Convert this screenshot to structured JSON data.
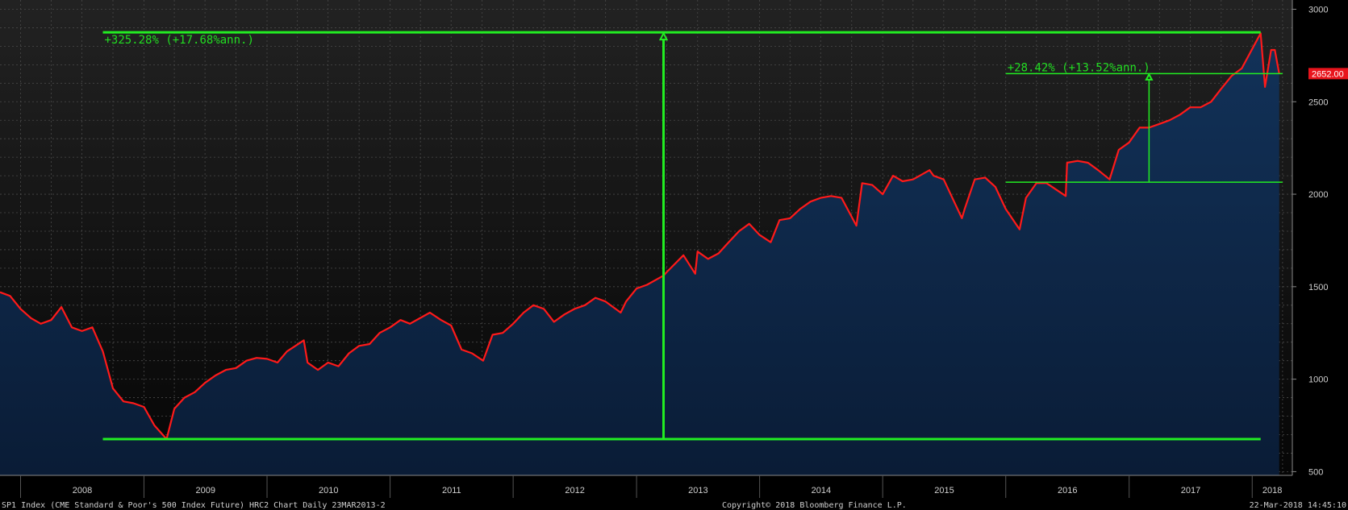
{
  "chart_data": {
    "type": "line",
    "title": "",
    "xlabel": "",
    "ylabel": "",
    "ylim": [
      480,
      3050
    ],
    "xlim": [
      "2007-11-01",
      "2018-04-30"
    ],
    "yticks": [
      500,
      1000,
      1500,
      2000,
      2500,
      3000
    ],
    "ytick_labels": [
      "500",
      "1000",
      "1500",
      "2000",
      "2500",
      "3000"
    ],
    "xticks": [
      2008,
      2009,
      2010,
      2011,
      2012,
      2013,
      2014,
      2015,
      2016,
      2017,
      2018
    ],
    "xtick_labels": [
      "2008",
      "2009",
      "2010",
      "2011",
      "2012",
      "2013",
      "2014",
      "2015",
      "2016",
      "2017",
      "2018"
    ],
    "grid": true,
    "colors": {
      "line": "#ff1a1a",
      "fill_top": "#0e2b4d",
      "fill_bottom": "#0a1a32",
      "annotation": "#22ee22",
      "bg_top": "#222222",
      "bg_bottom": "#050505"
    },
    "series": [
      {
        "x": [
          "2007-11-01",
          "2007-12-01",
          "2008-01-01",
          "2008-02-01",
          "2008-03-01",
          "2008-04-01",
          "2008-05-01",
          "2008-06-01",
          "2008-07-01",
          "2008-08-01",
          "2008-09-01",
          "2008-10-01",
          "2008-11-01",
          "2008-12-01",
          "2009-01-01",
          "2009-02-01",
          "2009-03-09",
          "2009-04-01",
          "2009-05-01",
          "2009-06-01",
          "2009-07-01",
          "2009-08-01",
          "2009-09-01",
          "2009-10-01",
          "2009-11-01",
          "2009-12-01",
          "2010-01-01",
          "2010-02-01",
          "2010-03-01",
          "2010-04-20",
          "2010-05-01",
          "2010-06-01",
          "2010-07-01",
          "2010-08-01",
          "2010-09-01",
          "2010-10-01",
          "2010-11-01",
          "2010-12-01",
          "2011-01-01",
          "2011-02-01",
          "2011-03-01",
          "2011-04-29",
          "2011-06-01",
          "2011-07-01",
          "2011-08-01",
          "2011-09-01",
          "2011-10-04",
          "2011-11-01",
          "2011-12-01",
          "2012-01-01",
          "2012-02-01",
          "2012-03-01",
          "2012-04-01",
          "2012-05-01",
          "2012-06-01",
          "2012-07-01",
          "2012-08-01",
          "2012-09-01",
          "2012-10-01",
          "2012-11-15",
          "2012-12-01",
          "2013-01-01",
          "2013-02-01",
          "2013-03-22",
          "2013-04-01",
          "2013-05-20",
          "2013-06-24",
          "2013-07-01",
          "2013-08-01",
          "2013-09-01",
          "2013-10-01",
          "2013-11-01",
          "2013-12-01",
          "2014-01-01",
          "2014-02-03",
          "2014-03-01",
          "2014-04-01",
          "2014-05-01",
          "2014-06-01",
          "2014-07-01",
          "2014-08-01",
          "2014-09-01",
          "2014-10-15",
          "2014-11-01",
          "2014-12-01",
          "2015-01-01",
          "2015-02-01",
          "2015-03-01",
          "2015-04-01",
          "2015-05-20",
          "2015-06-01",
          "2015-07-01",
          "2015-08-24",
          "2015-09-01",
          "2015-10-01",
          "2015-11-01",
          "2015-12-01",
          "2016-01-01",
          "2016-02-11",
          "2016-03-01",
          "2016-04-01",
          "2016-05-01",
          "2016-06-27",
          "2016-07-01",
          "2016-08-01",
          "2016-09-01",
          "2016-10-01",
          "2016-11-04",
          "2016-12-01",
          "2017-01-01",
          "2017-02-01",
          "2017-03-01",
          "2017-04-01",
          "2017-05-01",
          "2017-06-01",
          "2017-07-01",
          "2017-08-01",
          "2017-09-01",
          "2017-10-01",
          "2017-11-01",
          "2017-12-01",
          "2018-01-26",
          "2018-02-08",
          "2018-02-26",
          "2018-03-09",
          "2018-03-22"
        ],
        "values": [
          1470,
          1450,
          1380,
          1330,
          1300,
          1320,
          1390,
          1280,
          1260,
          1280,
          1150,
          950,
          880,
          870,
          850,
          750,
          676,
          840,
          900,
          930,
          980,
          1020,
          1050,
          1060,
          1100,
          1115,
          1110,
          1090,
          1150,
          1210,
          1090,
          1050,
          1090,
          1070,
          1140,
          1180,
          1190,
          1250,
          1280,
          1320,
          1300,
          1360,
          1320,
          1290,
          1160,
          1140,
          1100,
          1240,
          1250,
          1300,
          1360,
          1400,
          1380,
          1310,
          1350,
          1380,
          1400,
          1440,
          1420,
          1360,
          1420,
          1490,
          1510,
          1560,
          1580,
          1670,
          1570,
          1690,
          1650,
          1680,
          1740,
          1800,
          1840,
          1780,
          1740,
          1860,
          1870,
          1920,
          1960,
          1980,
          1990,
          1980,
          1830,
          2060,
          2050,
          2000,
          2100,
          2070,
          2080,
          2130,
          2100,
          2080,
          1870,
          1920,
          2080,
          2090,
          2040,
          1920,
          1810,
          1980,
          2060,
          2060,
          1990,
          2170,
          2180,
          2170,
          2130,
          2080,
          2240,
          2280,
          2360,
          2360,
          2380,
          2400,
          2430,
          2470,
          2470,
          2500,
          2570,
          2640,
          2680,
          2870,
          2580,
          2780,
          2780,
          2652
        ]
      }
    ],
    "last_value_label": "2652.00",
    "annotations": [
      {
        "text": "+325.28% (+17.68%ann.)",
        "from": {
          "x": "2009-03-09",
          "y": 676
        },
        "to": {
          "x": "2018-01-26",
          "y": 2875
        },
        "arrow_x": "2013-03-22",
        "line_start_x": "2008-09-01"
      },
      {
        "text": "+28.42% (+13.52%ann.)",
        "from": {
          "x": "2016-05-01",
          "y": 2065
        },
        "to": {
          "x": "2018-03-22",
          "y": 2652
        },
        "arrow_x": "2017-03-01",
        "line_start_x": "2016-01-01",
        "line_end_x": "2018-04-01"
      }
    ]
  },
  "footer": {
    "left": "SP1 Index (CME Standard & Poor's 500 Index Future) HRC2 Chart  Daily 23MAR2013-2",
    "center": "Copyright© 2018 Bloomberg Finance L.P.",
    "right": "22-Mar-2018 14:45:10"
  }
}
